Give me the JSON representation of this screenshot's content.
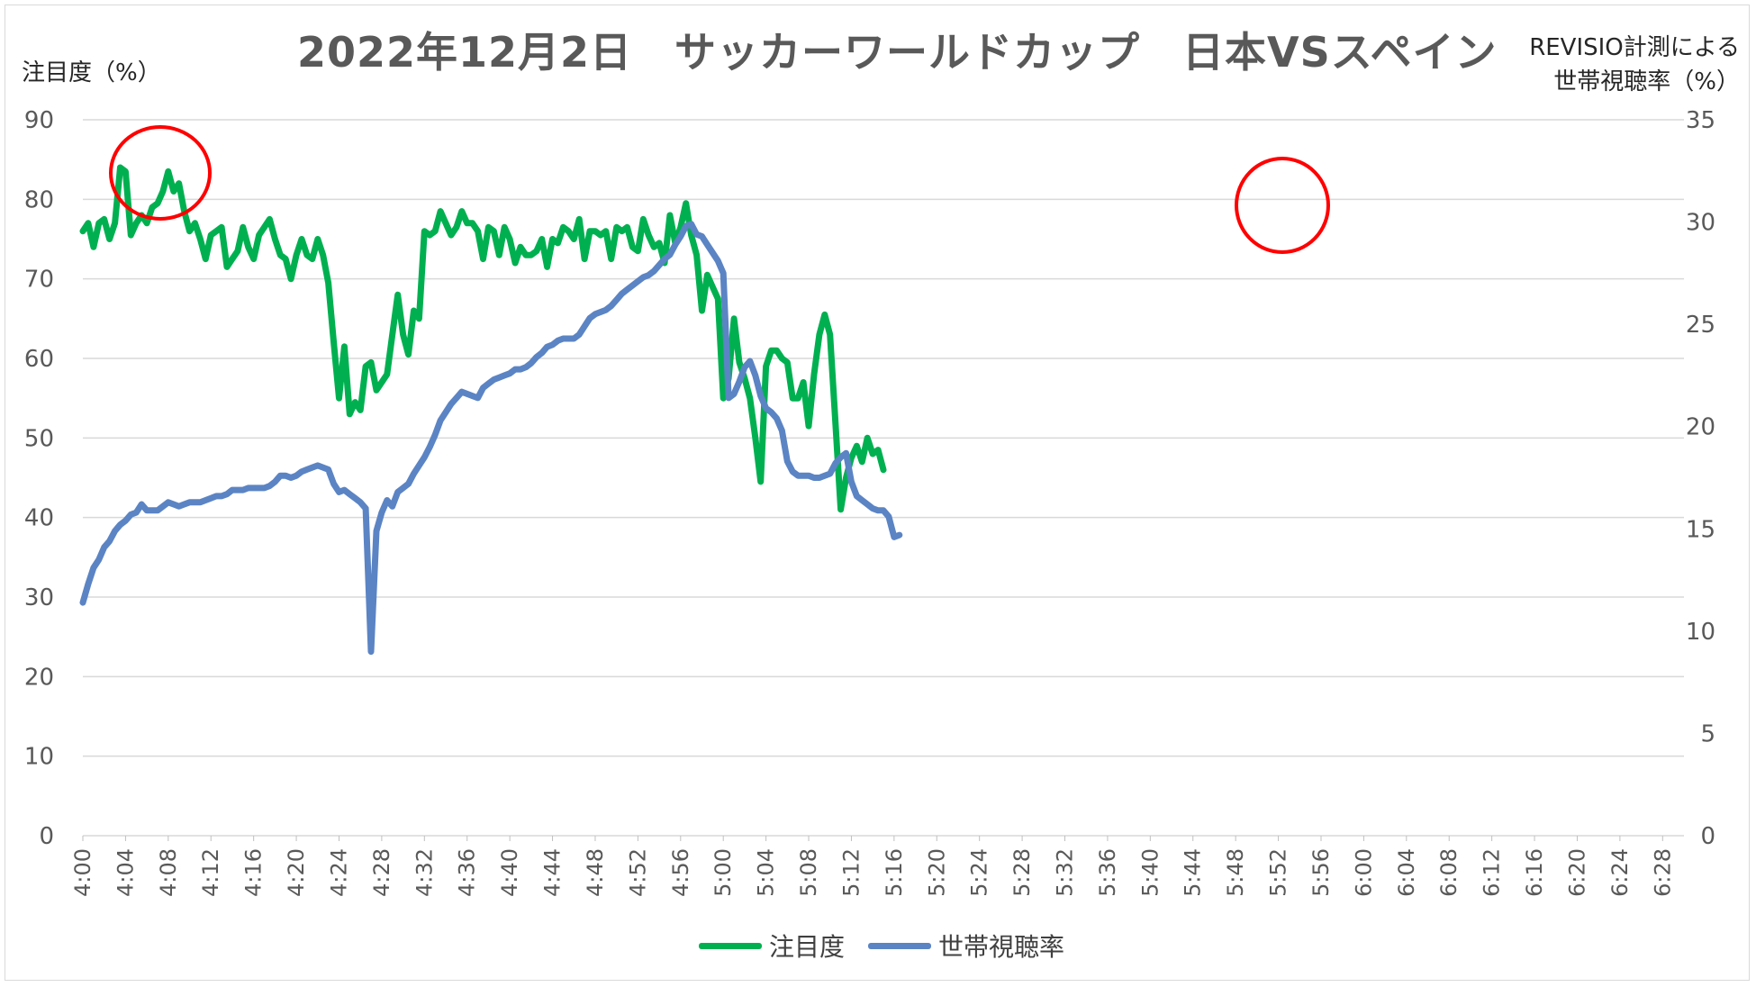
{
  "chart_data": {
    "type": "line",
    "title": "2022年12月2日　サッカーワールドカップ　日本VSスペイン",
    "ylabel_left": "注目度（%）",
    "ylabel_right": "REVISIO計測による\n世帯視聴率（%）",
    "ylim_left": [
      0,
      90
    ],
    "ylim_right": [
      0,
      35
    ],
    "yticks_left": [
      0,
      10,
      20,
      30,
      40,
      50,
      60,
      70,
      80,
      90
    ],
    "yticks_right": [
      0,
      5,
      10,
      15,
      20,
      25,
      30,
      35
    ],
    "xticks": [
      "4:00",
      "4:04",
      "4:08",
      "4:12",
      "4:16",
      "4:20",
      "4:24",
      "4:28",
      "4:32",
      "4:36",
      "4:40",
      "4:44",
      "4:48",
      "4:52",
      "4:56",
      "5:00",
      "5:04",
      "5:08",
      "5:12",
      "5:16",
      "5:20",
      "5:24",
      "5:28",
      "5:32",
      "5:36",
      "5:40",
      "5:44",
      "5:48",
      "5:52",
      "5:56",
      "6:00",
      "6:04",
      "6:08",
      "6:12",
      "6:16",
      "6:20",
      "6:24",
      "6:28"
    ],
    "x_start": "4:00",
    "x_step_minutes": 0.5,
    "grid": true,
    "legend_position": "bottom",
    "series": [
      {
        "name": "注目度",
        "axis": "left",
        "color": "#00b050",
        "values": [
          76,
          77,
          74,
          77,
          77.5,
          75,
          77,
          84,
          83.5,
          75.5,
          77,
          78,
          77,
          79,
          79.5,
          81,
          83.5,
          81,
          82,
          78.5,
          76,
          77,
          75,
          72.5,
          75.5,
          76,
          76.5,
          71.5,
          72.5,
          73.5,
          76.5,
          74,
          72.5,
          75.5,
          76.5,
          77.5,
          75,
          73,
          72.5,
          70,
          73,
          75,
          73,
          72.5,
          75,
          73,
          69.5,
          62,
          55,
          61.5,
          53,
          54.5,
          53.5,
          59,
          59.5,
          56,
          57,
          58,
          63,
          68,
          63,
          60.5,
          66,
          65,
          76,
          75.5,
          76,
          78.5,
          77,
          75.5,
          76.5,
          78.5,
          77,
          77,
          76,
          72.5,
          76.5,
          76,
          73,
          76.5,
          75,
          72,
          74,
          73,
          73,
          73.5,
          75,
          71.5,
          75,
          74.5,
          76.5,
          76,
          75,
          77.5,
          72.5,
          76,
          76,
          75.5,
          76,
          72.5,
          76.5,
          76,
          76.5,
          74,
          73.5,
          77.5,
          75.5,
          74,
          74.5,
          72,
          78,
          74.5,
          76.5,
          79.5,
          75.5,
          73,
          66,
          70.5,
          69,
          67.5,
          55,
          57.5,
          65,
          59.5,
          57.5,
          55,
          50,
          44.5,
          59,
          61,
          61,
          60,
          59.5,
          55,
          55,
          57,
          51.5,
          58,
          63,
          65.5,
          63,
          52,
          41,
          45,
          47.5,
          49,
          47,
          50,
          48,
          48.5,
          46
        ]
      },
      {
        "name": "世帯視聴率",
        "axis": "right",
        "color": "#5b84c4",
        "values": [
          11.4,
          12.3,
          13.1,
          13.5,
          14.1,
          14.4,
          14.9,
          15.2,
          15.4,
          15.7,
          15.8,
          16.2,
          15.9,
          15.9,
          15.9,
          16.1,
          16.3,
          16.2,
          16.1,
          16.2,
          16.3,
          16.3,
          16.3,
          16.4,
          16.5,
          16.6,
          16.6,
          16.7,
          16.9,
          16.9,
          16.9,
          17,
          17,
          17,
          17,
          17.1,
          17.3,
          17.6,
          17.6,
          17.5,
          17.6,
          17.8,
          17.9,
          18,
          18.1,
          18,
          17.9,
          17.2,
          16.8,
          16.9,
          16.7,
          16.5,
          16.3,
          16,
          9,
          14.9,
          15.8,
          16.4,
          16.1,
          16.8,
          17,
          17.2,
          17.7,
          18.1,
          18.5,
          19,
          19.6,
          20.3,
          20.7,
          21.1,
          21.4,
          21.7,
          21.6,
          21.5,
          21.4,
          21.9,
          22.1,
          22.3,
          22.4,
          22.5,
          22.6,
          22.8,
          22.8,
          22.9,
          23.1,
          23.4,
          23.6,
          23.9,
          24,
          24.2,
          24.3,
          24.3,
          24.3,
          24.5,
          24.9,
          25.3,
          25.5,
          25.6,
          25.7,
          25.9,
          26.2,
          26.5,
          26.7,
          26.9,
          27.1,
          27.3,
          27.4,
          27.6,
          27.9,
          28.2,
          28.4,
          28.9,
          29.3,
          29.8,
          29.9,
          29.4,
          29.3,
          28.9,
          28.5,
          28.1,
          27.5,
          21.4,
          21.6,
          22.2,
          22.9,
          23.2,
          22.5,
          21.5,
          20.9,
          20.7,
          20.4,
          19.8,
          18.3,
          17.8,
          17.6,
          17.6,
          17.6,
          17.5,
          17.5,
          17.6,
          17.7,
          18.2,
          18.5,
          18.7,
          17.3,
          16.6,
          16.4,
          16.2,
          16,
          15.9,
          15.9,
          15.6,
          14.6,
          14.7
        ]
      }
    ]
  }
}
